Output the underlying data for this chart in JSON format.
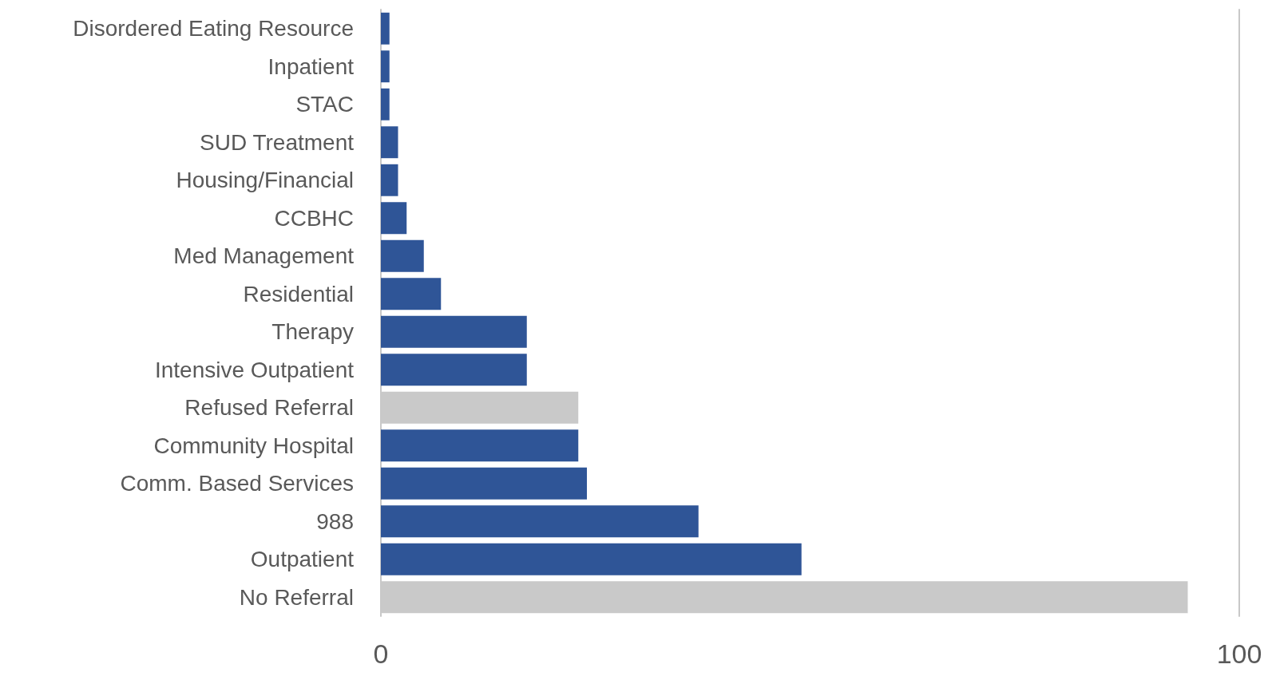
{
  "chart_data": {
    "type": "bar",
    "orientation": "horizontal",
    "categories": [
      "Disordered Eating Resource",
      "Inpatient",
      "STAC",
      "SUD Treatment",
      "Housing/Financial",
      "CCBHC",
      "Med Management",
      "Residential",
      "Therapy",
      "Intensive Outpatient",
      "Refused Referral",
      "Community Hospital",
      "Comm. Based Services",
      "988",
      "Outpatient",
      "No Referral"
    ],
    "values": [
      1,
      1,
      1,
      2,
      2,
      3,
      5,
      7,
      17,
      17,
      23,
      23,
      24,
      37,
      49,
      94
    ],
    "colors": [
      "#2f5597",
      "#2f5597",
      "#2f5597",
      "#2f5597",
      "#2f5597",
      "#2f5597",
      "#2f5597",
      "#2f5597",
      "#2f5597",
      "#2f5597",
      "#c9c9c9",
      "#2f5597",
      "#2f5597",
      "#2f5597",
      "#2f5597",
      "#c9c9c9"
    ],
    "xlim": [
      0,
      100
    ],
    "xticks": [
      0,
      100
    ]
  }
}
